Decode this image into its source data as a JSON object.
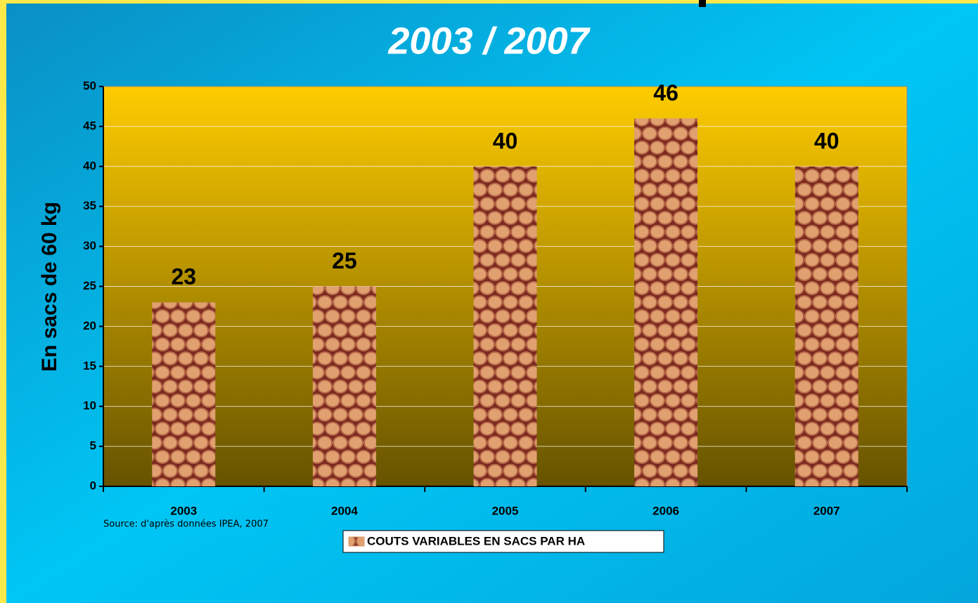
{
  "chart_data": {
    "type": "bar",
    "title": "2003 / 2007",
    "y_label": "En sacs de 60 kg",
    "categories": [
      "2003",
      "2004",
      "2005",
      "2006",
      "2007"
    ],
    "series": [
      {
        "name": "COUTS VARIABLES EN SACS PAR HA",
        "color": "#e0a070",
        "values": [
          23,
          25,
          40,
          46,
          40
        ]
      }
    ],
    "ylim": [
      0,
      50
    ],
    "yticks": [
      0,
      5,
      10,
      15,
      20,
      25,
      30,
      35,
      40,
      45,
      50
    ],
    "grid": true,
    "legend": "bottom",
    "source": "Source: d'après données IPEA, 2007"
  }
}
